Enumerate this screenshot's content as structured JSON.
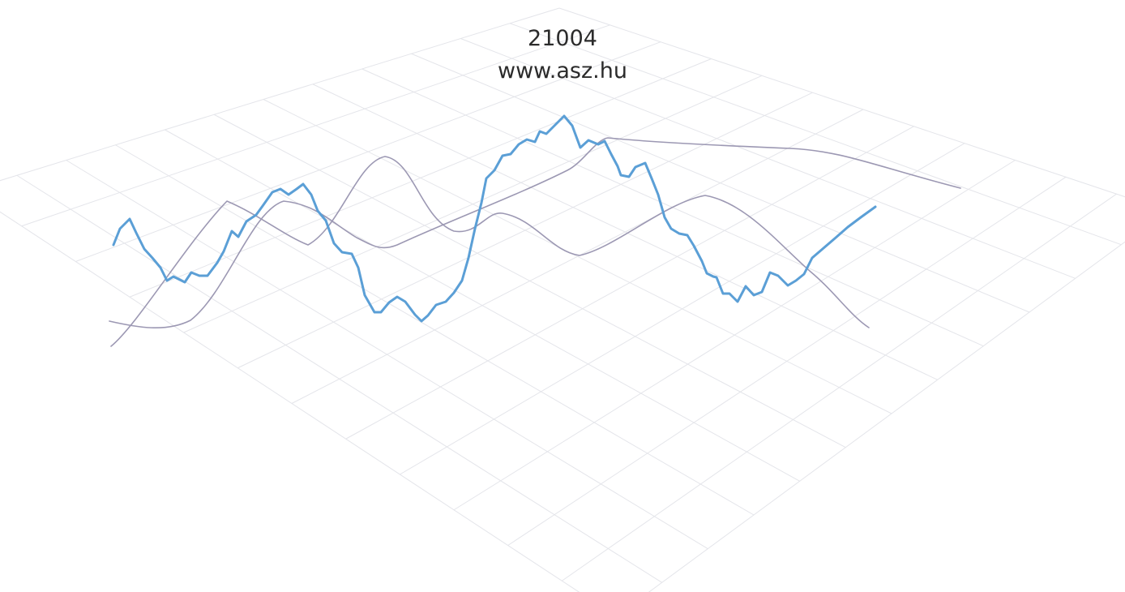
{
  "header": {
    "code": "21004",
    "url": "www.asz.hu"
  },
  "colors": {
    "main_line": "#5b9fd6",
    "thin_line": "#9c98b3",
    "grid": "#e4e5ea"
  },
  "decor": {
    "description_icon": "perspective-grid-with-wave-lines"
  }
}
